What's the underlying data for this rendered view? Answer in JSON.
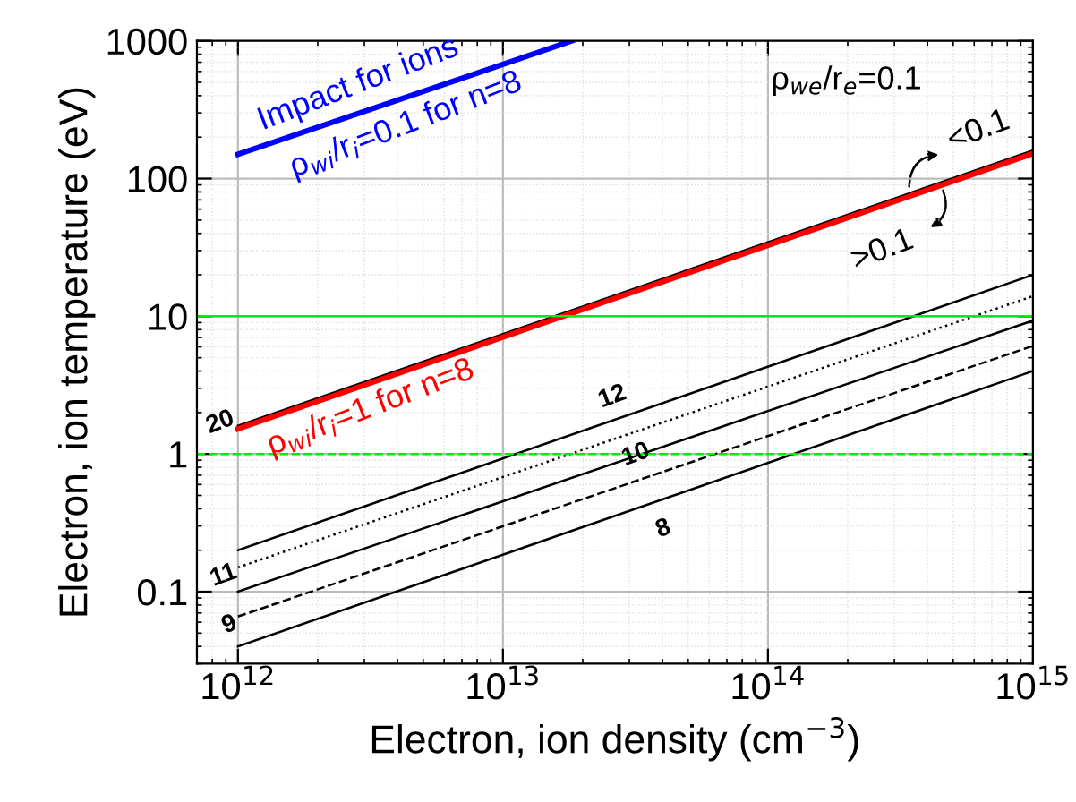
{
  "chart_data": {
    "type": "line",
    "xlabel": "Electron, ion density (cm$^{−3}$)",
    "ylabel": "Electron, ion temperature (eV)",
    "log": "xy",
    "grid": true,
    "xlim": [
      700000000000.0,
      1000000000000000.0
    ],
    "ylim": [
      0.03,
      1000
    ],
    "xticks": [
      {
        "value": 1000000000000.0,
        "label": "10$^{12}$"
      },
      {
        "value": 10000000000000.0,
        "label": "10$^{13}$"
      },
      {
        "value": 100000000000000.0,
        "label": "10$^{14}$"
      },
      {
        "value": 1000000000000000.0,
        "label": "10$^{15}$"
      }
    ],
    "yticks": [
      {
        "value": 0.1,
        "label": "0.1"
      },
      1,
      10,
      100,
      1000
    ],
    "series": [
      {
        "x": [
          1000000000000.0,
          18200000000000.0
        ],
        "values": [
          150,
          1000
        ],
        "color": "#0000ff",
        "line_style": "solid"
      },
      {
        "x": [
          1000000000000.0,
          1000000000000000.0
        ],
        "values": [
          1.6,
          160
        ],
        "color": "#000000",
        "line_style": "solid"
      },
      {
        "x": [
          1000000000000.0,
          1000000000000000.0
        ],
        "values": [
          1.52,
          152
        ],
        "color": "#ff0000",
        "line_style": "solid"
      },
      {
        "x": [
          1000000000000.0,
          1000000000000000.0
        ],
        "values": [
          0.2,
          20
        ],
        "color": "#000000",
        "line_style": "solid"
      },
      {
        "x": [
          1000000000000.0,
          1000000000000000.0
        ],
        "values": [
          0.15,
          14
        ],
        "color": "#000000",
        "line_style": "dotted"
      },
      {
        "x": [
          1000000000000.0,
          1000000000000000.0
        ],
        "values": [
          0.1,
          9.3
        ],
        "color": "#000000",
        "line_style": "solid"
      },
      {
        "x": [
          1000000000000.0,
          1000000000000000.0
        ],
        "values": [
          0.066,
          6.1
        ],
        "color": "#000000",
        "line_style": "dashed"
      },
      {
        "x": [
          1000000000000.0,
          1000000000000000.0
        ],
        "values": [
          0.04,
          4
        ],
        "color": "#000000",
        "line_style": "solid"
      }
    ],
    "ref_lines": [
      {
        "axis": "y",
        "value": 10,
        "color": "#00ee00",
        "line_style": "solid"
      },
      {
        "axis": "y",
        "value": 1,
        "color": "#00ee00",
        "line_style": "dashed"
      }
    ],
    "annotations": [
      "Impact for ions",
      "ρ$_{wi}$/r$_{i}$=0.1 for n=8",
      "ρ$_{we}$/r$_{e}$=0.1",
      "<0.1",
      ">0.1",
      "ρ$_{wi}$/r$_{i}$=1 for n=8",
      "20",
      "12",
      "11",
      "10",
      "9",
      "8"
    ]
  }
}
